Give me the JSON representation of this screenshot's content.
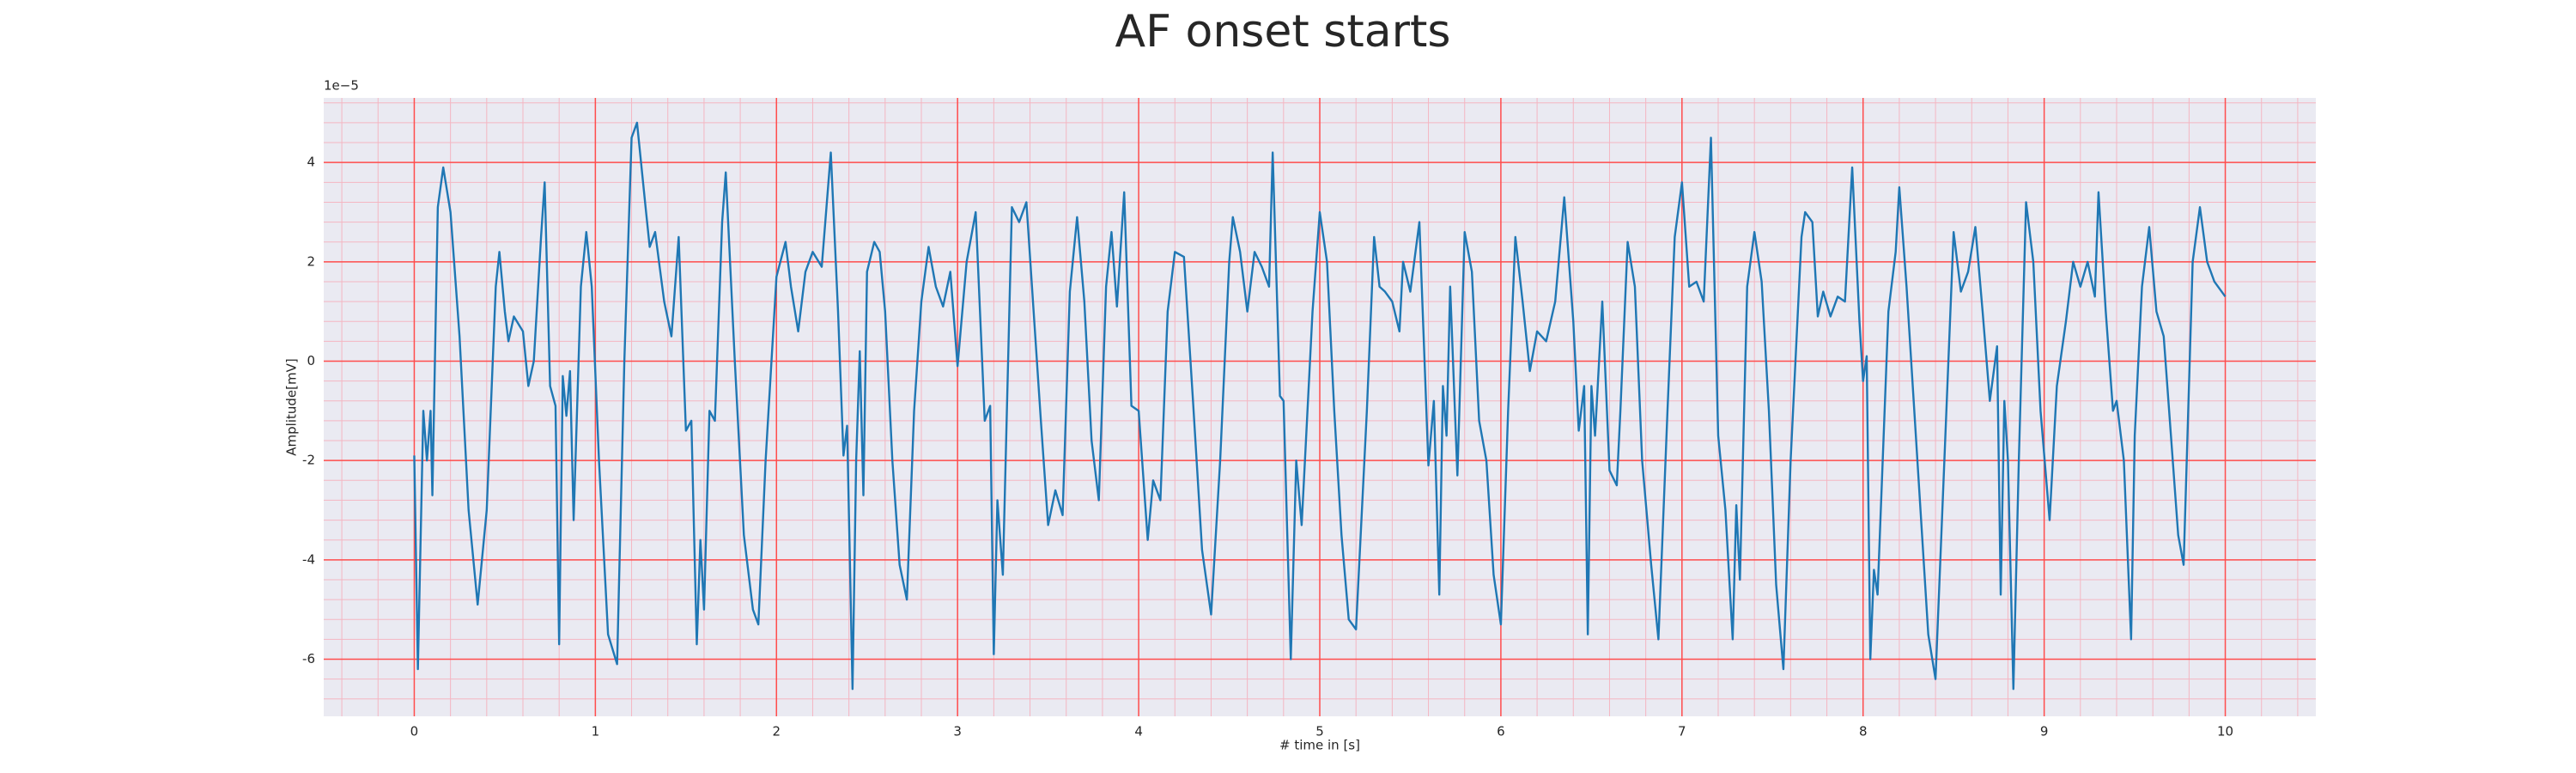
{
  "chart_data": {
    "type": "line",
    "title": "AF onset starts",
    "xlabel": "# time in [s]",
    "ylabel": "Amplitude[mV]",
    "y_offset_label": "1e−5",
    "xlim": [
      -0.5,
      10.5
    ],
    "ylim": [
      -7.15,
      5.3
    ],
    "xticks": [
      0,
      1,
      2,
      3,
      4,
      5,
      6,
      7,
      8,
      9,
      10
    ],
    "yticks": [
      -6,
      -4,
      -2,
      0,
      2,
      4
    ],
    "grid": true,
    "grid_color": "#ff4d4d",
    "minor_grid": true,
    "minor_grid_divisions": 5,
    "minor_grid_color": "#f4b6c2",
    "background": "#eaeaf2",
    "series": [
      {
        "color": "#1f77b4",
        "x": [
          0,
          0.02,
          0.05,
          0.07,
          0.09,
          0.1,
          0.13,
          0.16,
          0.2,
          0.25,
          0.3,
          0.35,
          0.4,
          0.45,
          0.47,
          0.5,
          0.52,
          0.55,
          0.6,
          0.63,
          0.66,
          0.7,
          0.72,
          0.75,
          0.78,
          0.8,
          0.82,
          0.84,
          0.86,
          0.88,
          0.92,
          0.95,
          0.98,
          1.02,
          1.07,
          1.12,
          1.16,
          1.2,
          1.23,
          1.28,
          1.3,
          1.33,
          1.38,
          1.42,
          1.46,
          1.5,
          1.53,
          1.56,
          1.58,
          1.6,
          1.63,
          1.66,
          1.7,
          1.72,
          1.77,
          1.82,
          1.87,
          1.9,
          1.94,
          2.0,
          2.05,
          2.08,
          2.12,
          2.16,
          2.2,
          2.25,
          2.3,
          2.34,
          2.37,
          2.39,
          2.42,
          2.44,
          2.46,
          2.48,
          2.5,
          2.54,
          2.57,
          2.6,
          2.64,
          2.68,
          2.72,
          2.76,
          2.8,
          2.84,
          2.88,
          2.92,
          2.96,
          3.0,
          3.05,
          3.1,
          3.15,
          3.18,
          3.2,
          3.22,
          3.25,
          3.3,
          3.34,
          3.38,
          3.42,
          3.46,
          3.5,
          3.54,
          3.58,
          3.62,
          3.66,
          3.7,
          3.74,
          3.78,
          3.82,
          3.85,
          3.88,
          3.92,
          3.96,
          4.0,
          4.05,
          4.08,
          4.12,
          4.16,
          4.2,
          4.25,
          4.3,
          4.35,
          4.4,
          4.45,
          4.5,
          4.52,
          4.56,
          4.6,
          4.64,
          4.68,
          4.72,
          4.74,
          4.78,
          4.8,
          4.84,
          4.87,
          4.9,
          4.96,
          5.0,
          5.04,
          5.08,
          5.12,
          5.16,
          5.2,
          5.26,
          5.3,
          5.33,
          5.36,
          5.4,
          5.44,
          5.46,
          5.5,
          5.55,
          5.6,
          5.63,
          5.66,
          5.68,
          5.7,
          5.72,
          5.76,
          5.8,
          5.84,
          5.88,
          5.92,
          5.96,
          6.0,
          6.04,
          6.08,
          6.12,
          6.16,
          6.2,
          6.25,
          6.3,
          6.35,
          6.4,
          6.43,
          6.46,
          6.48,
          6.5,
          6.52,
          6.56,
          6.6,
          6.64,
          6.66,
          6.7,
          6.74,
          6.78,
          6.83,
          6.87,
          6.92,
          6.96,
          7.0,
          7.04,
          7.08,
          7.12,
          7.16,
          7.2,
          7.24,
          7.28,
          7.3,
          7.32,
          7.36,
          7.4,
          7.44,
          7.48,
          7.52,
          7.56,
          7.6,
          7.66,
          7.68,
          7.72,
          7.75,
          7.78,
          7.82,
          7.86,
          7.9,
          7.94,
          7.98,
          8.0,
          8.02,
          8.04,
          8.06,
          8.08,
          8.14,
          8.18,
          8.2,
          8.24,
          8.3,
          8.36,
          8.4,
          8.46,
          8.5,
          8.54,
          8.58,
          8.62,
          8.66,
          8.7,
          8.74,
          8.76,
          8.78,
          8.8,
          8.83,
          8.86,
          8.9,
          8.94,
          8.98,
          9.03,
          9.07,
          9.12,
          9.16,
          9.2,
          9.24,
          9.28,
          9.3,
          9.34,
          9.38,
          9.4,
          9.44,
          9.48,
          9.5,
          9.54,
          9.58,
          9.62,
          9.66,
          9.7,
          9.74,
          9.77,
          9.82,
          9.86,
          9.9,
          9.94,
          10.0
        ],
        "values": [
          -1.9,
          -6.2,
          -1.0,
          -2.0,
          -1.0,
          -2.7,
          3.1,
          3.9,
          3.0,
          0.5,
          -3,
          -4.9,
          -3,
          1.5,
          2.2,
          1,
          0.4,
          0.9,
          0.6,
          -0.5,
          0,
          2.5,
          3.6,
          -0.5,
          -0.9,
          -5.7,
          -0.3,
          -1.1,
          -0.2,
          -3.2,
          1.5,
          2.6,
          1.5,
          -2,
          -5.5,
          -6.1,
          0,
          4.5,
          4.8,
          3.0,
          2.3,
          2.6,
          1.2,
          0.5,
          2.5,
          -1.4,
          -1.2,
          -5.7,
          -3.6,
          -5.0,
          -1.0,
          -1.2,
          2.8,
          3.8,
          0,
          -3.5,
          -5,
          -5.3,
          -2,
          1.7,
          2.4,
          1.5,
          0.6,
          1.8,
          2.2,
          1.9,
          4.2,
          1,
          -1.9,
          -1.3,
          -6.6,
          -2,
          0.2,
          -2.7,
          1.8,
          2.4,
          2.2,
          1,
          -2,
          -4.1,
          -4.8,
          -1,
          1.2,
          2.3,
          1.5,
          1.1,
          1.8,
          -0.1,
          2,
          3.0,
          -1.2,
          -0.9,
          -5.9,
          -2.8,
          -4.3,
          3.1,
          2.8,
          3.2,
          1,
          -1.2,
          -3.3,
          -2.6,
          -3.1,
          1.4,
          2.9,
          1.2,
          -1.6,
          -2.8,
          1.5,
          2.6,
          1.1,
          3.4,
          -0.9,
          -1,
          -3.6,
          -2.4,
          -2.8,
          1,
          2.2,
          2.1,
          -0.8,
          -3.8,
          -5.1,
          -2,
          2,
          2.9,
          2.2,
          1,
          2.2,
          1.9,
          1.5,
          4.2,
          -0.7,
          -0.8,
          -6,
          -2,
          -3.3,
          1,
          3.0,
          2,
          -1,
          -3.5,
          -5.2,
          -5.4,
          -1,
          2.5,
          1.5,
          1.4,
          1.2,
          0.6,
          2,
          1.4,
          2.8,
          -2.1,
          -0.8,
          -4.7,
          -0.5,
          -1.5,
          1.5,
          -2.3,
          2.6,
          1.8,
          -1.2,
          -2,
          -4.3,
          -5.3,
          -1,
          2.5,
          1.2,
          -0.2,
          0.6,
          0.4,
          1.2,
          3.3,
          0.8,
          -1.4,
          -0.5,
          -5.5,
          -0.5,
          -1.5,
          1.2,
          -2.2,
          -2.5,
          -1,
          2.4,
          1.5,
          -2,
          -4.1,
          -5.6,
          -1,
          2.5,
          3.6,
          1.5,
          1.6,
          1.2,
          4.5,
          -1.5,
          -3,
          -5.6,
          -2.9,
          -4.4,
          1.5,
          2.6,
          1.6,
          -1,
          -4.5,
          -6.2,
          -2,
          2.5,
          3,
          2.8,
          0.9,
          1.4,
          0.9,
          1.3,
          1.2,
          3.9,
          0.8,
          -0.4,
          0.1,
          -6,
          -4.2,
          -4.7,
          1,
          2.2,
          3.5,
          1.5,
          -2,
          -5.5,
          -6.4,
          -1,
          2.6,
          1.4,
          1.8,
          2.7,
          1,
          -0.8,
          0.3,
          -4.7,
          -0.8,
          -2,
          -6.6,
          -2,
          3.2,
          2,
          -1,
          -3.2,
          -0.5,
          0.8,
          2,
          1.5,
          2.0,
          1.3,
          3.4,
          1,
          -1,
          -0.8,
          -2,
          -5.6,
          -1.5,
          1.5,
          2.7,
          1,
          0.5,
          -1.5,
          -3.5,
          -4.1,
          2,
          3.1,
          2,
          1.6,
          1.3
        ]
      }
    ]
  }
}
